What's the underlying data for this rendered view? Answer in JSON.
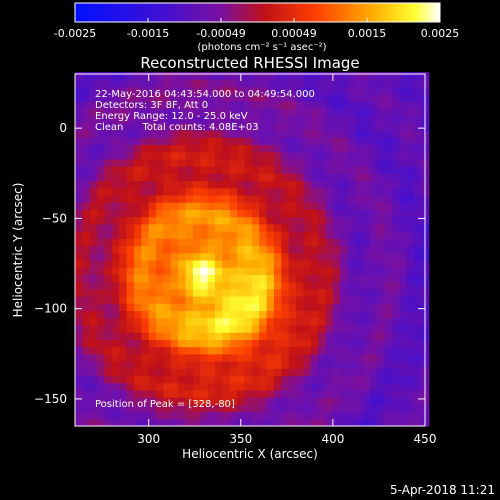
{
  "colorbar": {
    "tick_labels": [
      "-0.0025",
      "-0.0015",
      "-0.00049",
      "0.00049",
      "0.0015",
      "0.0025"
    ],
    "units_label": "(photons cm⁻² s⁻¹ asec⁻²)"
  },
  "footer": {
    "date": "5-Apr-2018 11:21"
  },
  "annotations": {
    "time_range": "22-May-2016 04:43:54.000 to 04:49:54.000",
    "detectors": "Detectors: 3F 8F, Att 0",
    "energy": "Energy Range: 12.0 - 25.0 keV",
    "clean": "Clean      Total counts: 4.08E+03",
    "peak": "Position of Peak = [328,-80]"
  },
  "chart_data": {
    "type": "heatmap",
    "title": "Reconstructed RHESSI Image",
    "xlabel": "Heliocentric X (arcsec)",
    "ylabel": "Heliocentric Y (arcsec)",
    "xlim": [
      260,
      450
    ],
    "ylim": [
      -165,
      30
    ],
    "x_ticks": [
      300,
      350,
      400,
      450
    ],
    "y_ticks": [
      0,
      -50,
      -100,
      -150
    ],
    "colormap": "RHESSI blue-purple-red-yellow-white",
    "value_range": [
      -0.0025,
      0.0025
    ],
    "peak_position": [
      328,
      -80
    ],
    "sources": [
      {
        "x": 328,
        "y": -80,
        "sigma_x": 40,
        "sigma_y": 48,
        "amplitude": 0.00245
      },
      {
        "x": 352,
        "y": -98,
        "sigma_x": 24,
        "sigma_y": 24,
        "amplitude": 0.0009
      }
    ],
    "background_level": -0.0009
  }
}
